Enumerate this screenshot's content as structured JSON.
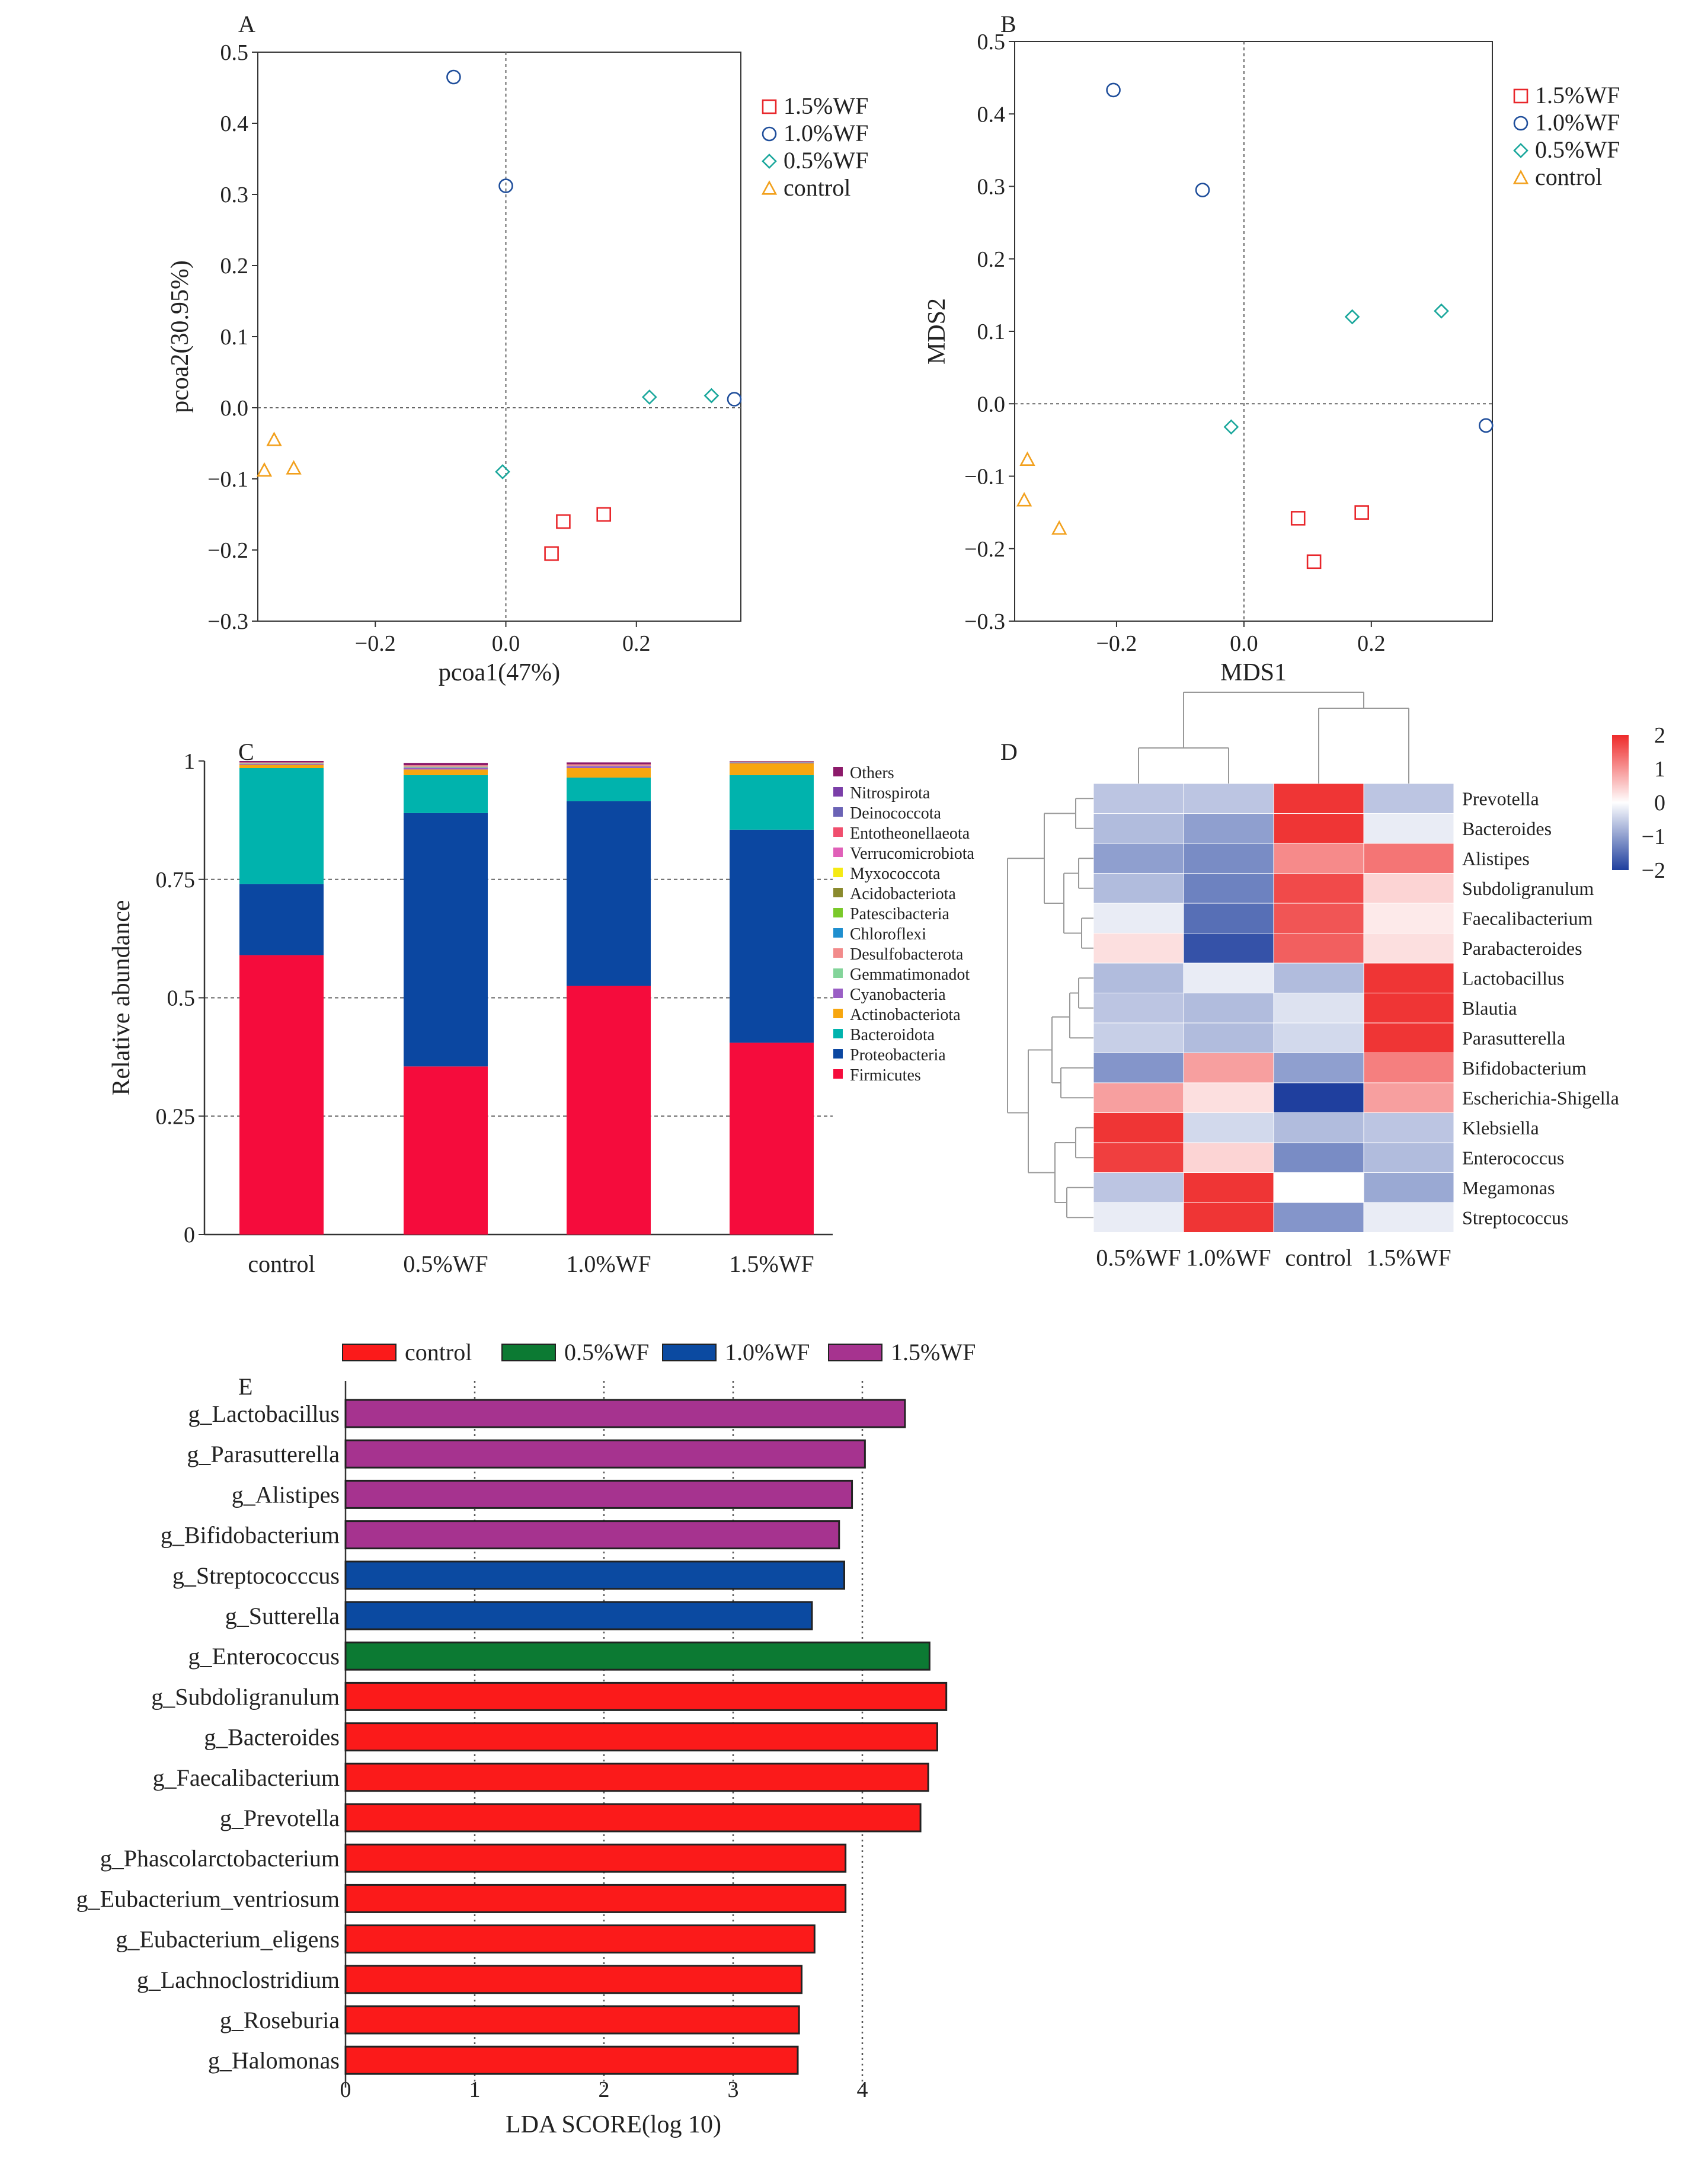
{
  "chart_data": [
    {
      "panel": "A",
      "type": "scatter",
      "xlabel": "pcoa1(47%)",
      "ylabel": "pcoa2(30.95%)",
      "xlim": [
        -0.38,
        0.36
      ],
      "ylim": [
        -0.3,
        0.5
      ],
      "xticks": [
        -0.2,
        0.0,
        0.2
      ],
      "xtick_labels": [
        "−0.2",
        "0.0",
        "0.2"
      ],
      "yticks": [
        -0.3,
        -0.2,
        -0.1,
        0.0,
        0.1,
        0.2,
        0.3,
        0.4,
        0.5
      ],
      "ytick_labels": [
        "−0.3",
        "−0.2",
        "−0.1",
        "0.0",
        "0.1",
        "0.2",
        "0.3",
        "0.4",
        "0.5"
      ],
      "reference_lines": {
        "x": 0,
        "y": 0
      },
      "legend_position": "right",
      "series": [
        {
          "name": "1.5%WF",
          "marker": "square",
          "color": "#e8262b",
          "points": [
            [
              0.07,
              -0.205
            ],
            [
              0.088,
              -0.16
            ],
            [
              0.15,
              -0.15
            ]
          ]
        },
        {
          "name": "1.0%WF",
          "marker": "circle",
          "color": "#1f4e9b",
          "points": [
            [
              -0.08,
              0.465
            ],
            [
              0.0,
              0.312
            ],
            [
              0.35,
              0.012
            ]
          ]
        },
        {
          "name": "0.5%WF",
          "marker": "diamond",
          "color": "#1aa79c",
          "points": [
            [
              -0.005,
              -0.09
            ],
            [
              0.22,
              0.015
            ],
            [
              0.315,
              0.017
            ]
          ]
        },
        {
          "name": "control",
          "marker": "triangle",
          "color": "#f2a01c",
          "points": [
            [
              -0.355,
              -0.045
            ],
            [
              -0.37,
              -0.088
            ],
            [
              -0.325,
              -0.085
            ]
          ]
        }
      ]
    },
    {
      "panel": "B",
      "type": "scatter",
      "xlabel": "MDS1",
      "ylabel": "MDS2",
      "xlim": [
        -0.36,
        0.39
      ],
      "ylim": [
        -0.3,
        0.5
      ],
      "xticks": [
        -0.2,
        0.0,
        0.2
      ],
      "xtick_labels": [
        "−0.2",
        "0.0",
        "0.2"
      ],
      "yticks": [
        -0.3,
        -0.2,
        -0.1,
        0.0,
        0.1,
        0.2,
        0.3,
        0.4,
        0.5
      ],
      "ytick_labels": [
        "−0.3",
        "−0.2",
        "−0.1",
        "0.0",
        "0.1",
        "0.2",
        "0.3",
        "0.4",
        "0.5"
      ],
      "reference_lines": {
        "x": 0,
        "y": 0
      },
      "legend_position": "right",
      "series": [
        {
          "name": "1.5%WF",
          "marker": "square",
          "color": "#e8262b",
          "points": [
            [
              0.085,
              -0.158
            ],
            [
              0.11,
              -0.218
            ],
            [
              0.185,
              -0.15
            ]
          ]
        },
        {
          "name": "1.0%WF",
          "marker": "circle",
          "color": "#1f4e9b",
          "points": [
            [
              -0.205,
              0.433
            ],
            [
              -0.065,
              0.295
            ],
            [
              0.38,
              -0.03
            ]
          ]
        },
        {
          "name": "0.5%WF",
          "marker": "diamond",
          "color": "#1aa79c",
          "points": [
            [
              -0.02,
              -0.032
            ],
            [
              0.17,
              0.12
            ],
            [
              0.31,
              0.128
            ]
          ]
        },
        {
          "name": "control",
          "marker": "triangle",
          "color": "#f2a01c",
          "points": [
            [
              -0.34,
              -0.077
            ],
            [
              -0.345,
              -0.133
            ],
            [
              -0.29,
              -0.172
            ]
          ]
        }
      ]
    },
    {
      "panel": "C",
      "type": "bar",
      "stacked": true,
      "ylabel": "Relative abundance",
      "ylim": [
        0,
        1
      ],
      "yticks": [
        0,
        0.25,
        0.5,
        0.75,
        1
      ],
      "ytick_labels": [
        "0",
        "0.25",
        "0.5",
        "0.75",
        "1"
      ],
      "categories": [
        "control",
        "0.5%WF",
        "1.0%WF",
        "1.5%WF"
      ],
      "legend_position": "right",
      "legend_order": [
        "Others",
        "Nitrospirota",
        "Deinococcota",
        "Entotheonellaeota",
        "Verrucomicrobiota",
        "Myxococcota",
        "Acidobacteriota",
        "Patescibacteria",
        "Chloroflexi",
        "Desulfobacterota",
        "Gemmatimonadota",
        "Cyanobacteria",
        "Actinobacteriota",
        "Bacteroidota",
        "Proteobacteria",
        "Firmicutes"
      ],
      "legend_labels": {
        "Verrucomicrobiota": "Verrucomicrobiota",
        "Gemmatimonadota": "Gemmatimonadot"
      },
      "series": [
        {
          "name": "Firmicutes",
          "color": "#f50c3c",
          "values": [
            0.59,
            0.355,
            0.525,
            0.405
          ]
        },
        {
          "name": "Proteobacteria",
          "color": "#0b47a1",
          "values": [
            0.15,
            0.535,
            0.39,
            0.45
          ]
        },
        {
          "name": "Bacteroidota",
          "color": "#00b3ad",
          "values": [
            0.245,
            0.08,
            0.05,
            0.115
          ]
        },
        {
          "name": "Actinobacteriota",
          "color": "#f7a60f",
          "values": [
            0.007,
            0.012,
            0.02,
            0.025
          ]
        },
        {
          "name": "Cyanobacteria",
          "color": "#9a5fc5",
          "values": [
            0.002,
            0.004,
            0.004,
            0.002
          ]
        },
        {
          "name": "Gemmatimonadota",
          "color": "#83d49a",
          "values": [
            0.001,
            0.002,
            0.001,
            0.001
          ]
        },
        {
          "name": "Desulfobacterota",
          "color": "#f28b8b",
          "values": [
            0.002,
            0.003,
            0.003,
            0.001
          ]
        },
        {
          "name": "Chloroflexi",
          "color": "#1f8fcf",
          "values": [
            0.0,
            0.0,
            0.0,
            0.0
          ]
        },
        {
          "name": "Patescibacteria",
          "color": "#7ac92a",
          "values": [
            0.0,
            0.0,
            0.0,
            0.0
          ]
        },
        {
          "name": "Acidobacteriota",
          "color": "#8a8a2e",
          "values": [
            0.0,
            0.0,
            0.0,
            0.0
          ]
        },
        {
          "name": "Myxococcota",
          "color": "#f5ea14",
          "values": [
            0.0,
            0.0,
            0.0,
            0.0
          ]
        },
        {
          "name": "Verrucomicrobiota",
          "color": "#e060b8",
          "values": [
            0.0,
            0.0,
            0.0,
            0.0
          ]
        },
        {
          "name": "Entotheonellaeota",
          "color": "#f04e6e",
          "values": [
            0.0,
            0.0,
            0.0,
            0.0
          ]
        },
        {
          "name": "Deinococcota",
          "color": "#6b63b5",
          "values": [
            0.0,
            0.0,
            0.0,
            0.0
          ]
        },
        {
          "name": "Nitrospirota",
          "color": "#7b3fa8",
          "values": [
            0.0,
            0.0,
            0.0,
            0.0
          ]
        },
        {
          "name": "Others",
          "color": "#8c1a6a",
          "values": [
            0.003,
            0.005,
            0.004,
            0.001
          ]
        }
      ]
    },
    {
      "panel": "D",
      "type": "heatmap",
      "columns": [
        "0.5%WF",
        "1.0%WF",
        "control",
        "1.5%WF"
      ],
      "rows": [
        "Prevotella",
        "Bacteroides",
        "Alistipes",
        "Subdoligranulum",
        "Faecalibacterium",
        "Parabacteroides",
        "Lactobacillus",
        "Blautia",
        "Parasutterella",
        "Bifidobacterium",
        "Escherichia-Shigella",
        "Klebsiella",
        "Enterococcus",
        "Megamonas",
        "Streptococcus"
      ],
      "values": [
        [
          -0.6,
          -0.6,
          1.9,
          -0.6
        ],
        [
          -0.7,
          -1.0,
          1.9,
          -0.2
        ],
        [
          -1.0,
          -1.2,
          1.1,
          1.3
        ],
        [
          -0.7,
          -1.3,
          1.7,
          0.4
        ],
        [
          -0.2,
          -1.5,
          1.6,
          0.2
        ],
        [
          0.3,
          -1.8,
          1.5,
          0.3
        ],
        [
          -0.7,
          -0.2,
          -0.7,
          1.9
        ],
        [
          -0.6,
          -0.7,
          -0.3,
          1.9
        ],
        [
          -0.5,
          -0.7,
          -0.4,
          1.9
        ],
        [
          -1.1,
          0.9,
          -1.0,
          1.2
        ],
        [
          0.9,
          0.3,
          -2.0,
          0.9
        ],
        [
          1.9,
          -0.4,
          -0.7,
          -0.6
        ],
        [
          1.8,
          0.4,
          -1.2,
          -0.7
        ],
        [
          -0.6,
          1.9,
          0.0,
          -0.9
        ],
        [
          -0.2,
          1.9,
          -1.1,
          -0.2
        ]
      ],
      "colorbar": {
        "min": -2,
        "max": 2,
        "ticks": [
          2,
          1,
          0,
          -1,
          -2
        ],
        "tick_labels": [
          "2",
          "1",
          "0",
          "−1",
          "−2"
        ],
        "low_color": "#1f3f9e",
        "mid_color": "#ffffff",
        "high_color": "#ee2a2a"
      }
    },
    {
      "panel": "E",
      "type": "bar",
      "orientation": "horizontal",
      "xlabel": "LDA SCORE(log 10)",
      "xlim": [
        0,
        4.7
      ],
      "xticks": [
        0,
        1,
        2,
        3,
        4
      ],
      "xtick_labels": [
        "0",
        "1",
        "2",
        "3",
        "4"
      ],
      "legend_position": "top",
      "legend": [
        {
          "name": "control",
          "color": "#fb1a1a"
        },
        {
          "name": "0.5%WF",
          "color": "#0c7a33"
        },
        {
          "name": "1.0%WF",
          "color": "#0b4aa1"
        },
        {
          "name": "1.5%WF",
          "color": "#a6338f"
        }
      ],
      "bars": [
        {
          "label": "g_Lactobacillus",
          "group": "1.5%WF",
          "value": 4.33
        },
        {
          "label": "g_Parasutterella",
          "group": "1.5%WF",
          "value": 4.02
        },
        {
          "label": "g_Alistipes",
          "group": "1.5%WF",
          "value": 3.92
        },
        {
          "label": "g_Bifidobacterium",
          "group": "1.5%WF",
          "value": 3.82
        },
        {
          "label": "g_Streptococccus",
          "group": "1.0%WF",
          "value": 3.86
        },
        {
          "label": "g_Sutterella",
          "group": "1.0%WF",
          "value": 3.61
        },
        {
          "label": "g_Enterococcus",
          "group": "0.5%WF",
          "value": 4.52
        },
        {
          "label": "g_Subdoligranulum",
          "group": "control",
          "value": 4.65
        },
        {
          "label": "g_Bacteroides",
          "group": "control",
          "value": 4.58
        },
        {
          "label": "g_Faecalibacterium",
          "group": "control",
          "value": 4.51
        },
        {
          "label": "g_Prevotella",
          "group": "control",
          "value": 4.45
        },
        {
          "label": "g_Phascolarctobacterium",
          "group": "control",
          "value": 3.87
        },
        {
          "label": "g_Eubacterium_ventriosum",
          "group": "control",
          "value": 3.87
        },
        {
          "label": "g_Eubacterium_eligens",
          "group": "control",
          "value": 3.63
        },
        {
          "label": "g_Lachnoclostridium",
          "group": "control",
          "value": 3.53
        },
        {
          "label": "g_Roseburia",
          "group": "control",
          "value": 3.51
        },
        {
          "label": "g_Halomonas",
          "group": "control",
          "value": 3.5
        }
      ]
    }
  ],
  "panel_letters": {
    "a": "A",
    "b": "B",
    "c": "C",
    "d": "D",
    "e": "E"
  },
  "style": {
    "axis_color": "#333333",
    "grid_color": "#555555",
    "bar_outline": "#222222"
  }
}
